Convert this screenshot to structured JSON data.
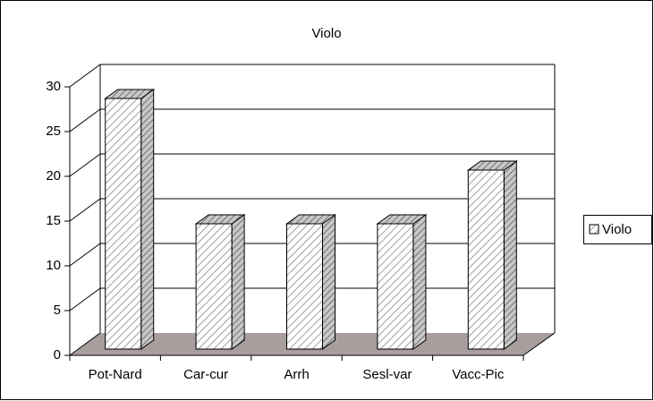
{
  "chart_data": {
    "type": "bar",
    "title": "Violo",
    "categories": [
      "Pot-Nard",
      "Car-cur",
      "Arrh",
      "Sesl-var",
      "Vacc-Pic"
    ],
    "series": [
      {
        "name": "Violo",
        "color": "#a0a0a0",
        "values": [
          28,
          14,
          14,
          14,
          20
        ]
      }
    ],
    "ylim": [
      0,
      30
    ],
    "yticks": [
      0,
      5,
      10,
      15,
      20,
      25,
      30
    ],
    "grid": true,
    "legend": "right"
  }
}
